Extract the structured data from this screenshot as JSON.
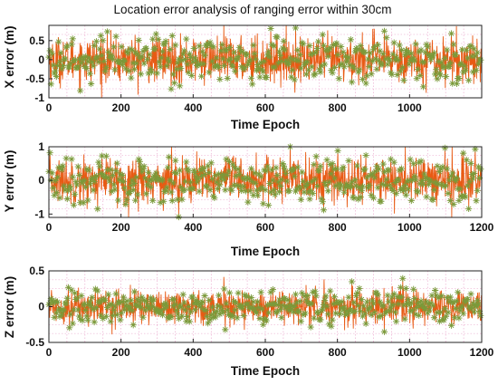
{
  "figure": {
    "title": "Location error analysis of ranging error within 30cm"
  },
  "chart_data": [
    {
      "type": "line",
      "panel": "x",
      "xlabel": "Time Epoch",
      "ylabel": "X error (m)",
      "xlim": [
        0,
        1200
      ],
      "ylim": [
        -1,
        0.9
      ],
      "xticks": [
        0,
        200,
        400,
        600,
        800,
        1000
      ],
      "yticks": [
        0.5,
        0,
        -0.5,
        -1
      ],
      "ytick_labels": [
        "0.5",
        "0",
        "-0.5",
        "-1"
      ],
      "grid": true,
      "marker": "asterisk",
      "series": [
        {
          "n_points": 1200,
          "mean": 0.0,
          "std": 0.3,
          "min": -1.0,
          "max": 0.9,
          "color_line": "#e85a14",
          "color_marker": "#7a9a3a"
        }
      ]
    },
    {
      "type": "line",
      "panel": "y",
      "xlabel": "Time Epoch",
      "ylabel": "Y error (m)",
      "xlim": [
        0,
        1200
      ],
      "ylim": [
        -1.1,
        1.0
      ],
      "xticks": [
        0,
        200,
        400,
        600,
        800,
        1000,
        1200
      ],
      "yticks": [
        1,
        0,
        -1
      ],
      "ytick_labels": [
        "1",
        "0",
        "-1"
      ],
      "grid": true,
      "marker": "asterisk",
      "series": [
        {
          "n_points": 1200,
          "mean": 0.0,
          "std": 0.35,
          "min": -1.1,
          "max": 1.0,
          "color_line": "#e85a14",
          "color_marker": "#7a9a3a"
        }
      ]
    },
    {
      "type": "line",
      "panel": "z",
      "xlabel": "Time Epoch",
      "ylabel": "Z error (m)",
      "xlim": [
        0,
        1200
      ],
      "ylim": [
        -0.5,
        0.5
      ],
      "xticks": [
        0,
        200,
        400,
        600,
        800,
        1000,
        1200
      ],
      "yticks": [
        0.5,
        0,
        -0.5
      ],
      "ytick_labels": [
        "0.5",
        "0",
        "-0.5"
      ],
      "grid": true,
      "marker": "asterisk",
      "series": [
        {
          "n_points": 1200,
          "mean": 0.0,
          "std": 0.12,
          "min": -0.42,
          "max": 0.45,
          "color_line": "#e85a14",
          "color_marker": "#7a9a3a"
        }
      ]
    }
  ]
}
